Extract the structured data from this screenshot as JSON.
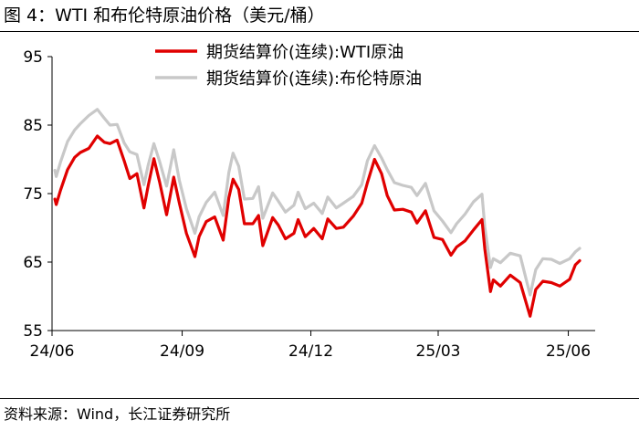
{
  "figure": {
    "title": "图 4：WTI 和布伦特原油价格（美元/桶）",
    "source": "资料来源：Wind，长江证券研究所"
  },
  "chart_data": {
    "type": "line",
    "ylim": [
      55,
      95
    ],
    "yticks": [
      55,
      65,
      75,
      85,
      95
    ],
    "ytick_labels": [
      "55",
      "65",
      "75",
      "85",
      "95"
    ],
    "xlim": [
      "2024-06-01",
      "2025-06-20"
    ],
    "xticks": [
      "2024-06-01",
      "2024-09-01",
      "2024-12-01",
      "2025-03-01",
      "2025-06-01"
    ],
    "xtick_labels": [
      "24/06",
      "24/09",
      "24/12",
      "25/03",
      "25/06"
    ],
    "grid": false,
    "legend_position": "top-right",
    "series": [
      {
        "name": "期货结算价(连续):WTI原油",
        "color": "#e00000",
        "points": [
          [
            "2024-06-03",
            74.2
          ],
          [
            "2024-06-04",
            73.4
          ],
          [
            "2024-06-07",
            75.5
          ],
          [
            "2024-06-12",
            78.5
          ],
          [
            "2024-06-17",
            80.3
          ],
          [
            "2024-06-21",
            81.0
          ],
          [
            "2024-06-27",
            81.6
          ],
          [
            "2024-07-03",
            83.4
          ],
          [
            "2024-07-08",
            82.5
          ],
          [
            "2024-07-12",
            82.3
          ],
          [
            "2024-07-17",
            82.8
          ],
          [
            "2024-07-22",
            79.8
          ],
          [
            "2024-07-26",
            77.2
          ],
          [
            "2024-07-31",
            77.9
          ],
          [
            "2024-08-05",
            72.9
          ],
          [
            "2024-08-08",
            76.2
          ],
          [
            "2024-08-12",
            80.1
          ],
          [
            "2024-08-16",
            76.7
          ],
          [
            "2024-08-21",
            71.9
          ],
          [
            "2024-08-26",
            77.4
          ],
          [
            "2024-08-30",
            73.6
          ],
          [
            "2024-09-04",
            69.2
          ],
          [
            "2024-09-10",
            65.8
          ],
          [
            "2024-09-13",
            68.7
          ],
          [
            "2024-09-18",
            70.9
          ],
          [
            "2024-09-24",
            71.6
          ],
          [
            "2024-09-30",
            68.2
          ],
          [
            "2024-10-04",
            74.4
          ],
          [
            "2024-10-07",
            77.1
          ],
          [
            "2024-10-11",
            75.6
          ],
          [
            "2024-10-15",
            70.6
          ],
          [
            "2024-10-21",
            70.6
          ],
          [
            "2024-10-25",
            71.8
          ],
          [
            "2024-10-28",
            67.4
          ],
          [
            "2024-11-04",
            71.5
          ],
          [
            "2024-11-08",
            70.4
          ],
          [
            "2024-11-13",
            68.4
          ],
          [
            "2024-11-19",
            69.2
          ],
          [
            "2024-11-22",
            71.2
          ],
          [
            "2024-11-27",
            68.7
          ],
          [
            "2024-12-03",
            69.9
          ],
          [
            "2024-12-09",
            68.4
          ],
          [
            "2024-12-13",
            71.3
          ],
          [
            "2024-12-19",
            69.9
          ],
          [
            "2024-12-24",
            70.1
          ],
          [
            "2024-12-31",
            71.7
          ],
          [
            "2025-01-06",
            73.6
          ],
          [
            "2025-01-10",
            76.6
          ],
          [
            "2025-01-15",
            80.0
          ],
          [
            "2025-01-20",
            77.9
          ],
          [
            "2025-01-24",
            74.7
          ],
          [
            "2025-01-29",
            72.6
          ],
          [
            "2025-02-04",
            72.7
          ],
          [
            "2025-02-10",
            72.3
          ],
          [
            "2025-02-14",
            70.7
          ],
          [
            "2025-02-20",
            72.5
          ],
          [
            "2025-02-26",
            68.6
          ],
          [
            "2025-03-04",
            68.3
          ],
          [
            "2025-03-10",
            66.0
          ],
          [
            "2025-03-14",
            67.2
          ],
          [
            "2025-03-20",
            68.1
          ],
          [
            "2025-03-26",
            69.7
          ],
          [
            "2025-04-01",
            71.2
          ],
          [
            "2025-04-03",
            66.9
          ],
          [
            "2025-04-07",
            60.7
          ],
          [
            "2025-04-09",
            62.4
          ],
          [
            "2025-04-14",
            61.5
          ],
          [
            "2025-04-21",
            63.1
          ],
          [
            "2025-04-28",
            62.0
          ],
          [
            "2025-05-05",
            57.1
          ],
          [
            "2025-05-09",
            61.0
          ],
          [
            "2025-05-14",
            62.2
          ],
          [
            "2025-05-20",
            62.0
          ],
          [
            "2025-05-26",
            61.5
          ],
          [
            "2025-06-02",
            62.5
          ],
          [
            "2025-06-06",
            64.6
          ],
          [
            "2025-06-09",
            65.2
          ]
        ]
      },
      {
        "name": "期货结算价(连续):布伦特原油",
        "color": "#c8c8c8",
        "points": [
          [
            "2024-06-03",
            78.4
          ],
          [
            "2024-06-04",
            77.5
          ],
          [
            "2024-06-07",
            79.6
          ],
          [
            "2024-06-12",
            82.6
          ],
          [
            "2024-06-17",
            84.3
          ],
          [
            "2024-06-21",
            85.2
          ],
          [
            "2024-06-27",
            86.4
          ],
          [
            "2024-07-03",
            87.3
          ],
          [
            "2024-07-08",
            86.0
          ],
          [
            "2024-07-12",
            85.0
          ],
          [
            "2024-07-17",
            85.1
          ],
          [
            "2024-07-22",
            82.4
          ],
          [
            "2024-07-26",
            81.1
          ],
          [
            "2024-07-31",
            80.7
          ],
          [
            "2024-08-05",
            76.3
          ],
          [
            "2024-08-08",
            79.2
          ],
          [
            "2024-08-12",
            82.3
          ],
          [
            "2024-08-16",
            79.7
          ],
          [
            "2024-08-21",
            76.1
          ],
          [
            "2024-08-26",
            81.4
          ],
          [
            "2024-08-30",
            76.9
          ],
          [
            "2024-09-04",
            72.8
          ],
          [
            "2024-09-10",
            69.2
          ],
          [
            "2024-09-13",
            71.6
          ],
          [
            "2024-09-18",
            73.7
          ],
          [
            "2024-09-24",
            75.2
          ],
          [
            "2024-09-30",
            71.8
          ],
          [
            "2024-10-04",
            78.1
          ],
          [
            "2024-10-07",
            80.9
          ],
          [
            "2024-10-11",
            79.0
          ],
          [
            "2024-10-15",
            74.2
          ],
          [
            "2024-10-21",
            74.3
          ],
          [
            "2024-10-25",
            76.0
          ],
          [
            "2024-10-28",
            71.4
          ],
          [
            "2024-11-04",
            75.1
          ],
          [
            "2024-11-08",
            73.9
          ],
          [
            "2024-11-13",
            72.3
          ],
          [
            "2024-11-19",
            73.3
          ],
          [
            "2024-11-22",
            75.2
          ],
          [
            "2024-11-27",
            72.8
          ],
          [
            "2024-12-03",
            73.6
          ],
          [
            "2024-12-09",
            72.1
          ],
          [
            "2024-12-13",
            74.5
          ],
          [
            "2024-12-19",
            72.9
          ],
          [
            "2024-12-24",
            73.6
          ],
          [
            "2024-12-31",
            74.6
          ],
          [
            "2025-01-06",
            76.3
          ],
          [
            "2025-01-10",
            79.8
          ],
          [
            "2025-01-15",
            82.0
          ],
          [
            "2025-01-20",
            80.2
          ],
          [
            "2025-01-24",
            78.5
          ],
          [
            "2025-01-29",
            76.6
          ],
          [
            "2025-02-04",
            76.2
          ],
          [
            "2025-02-10",
            75.9
          ],
          [
            "2025-02-14",
            74.7
          ],
          [
            "2025-02-20",
            76.5
          ],
          [
            "2025-02-26",
            72.5
          ],
          [
            "2025-03-04",
            71.0
          ],
          [
            "2025-03-10",
            69.3
          ],
          [
            "2025-03-14",
            70.6
          ],
          [
            "2025-03-20",
            72.0
          ],
          [
            "2025-03-26",
            73.8
          ],
          [
            "2025-04-01",
            74.9
          ],
          [
            "2025-04-03",
            70.1
          ],
          [
            "2025-04-07",
            64.2
          ],
          [
            "2025-04-09",
            65.5
          ],
          [
            "2025-04-14",
            64.9
          ],
          [
            "2025-04-21",
            66.3
          ],
          [
            "2025-04-28",
            65.9
          ],
          [
            "2025-05-05",
            60.2
          ],
          [
            "2025-05-09",
            63.9
          ],
          [
            "2025-05-14",
            65.5
          ],
          [
            "2025-05-20",
            65.4
          ],
          [
            "2025-05-26",
            64.8
          ],
          [
            "2025-06-02",
            65.5
          ],
          [
            "2025-06-06",
            66.5
          ],
          [
            "2025-06-09",
            67.0
          ]
        ]
      }
    ]
  }
}
